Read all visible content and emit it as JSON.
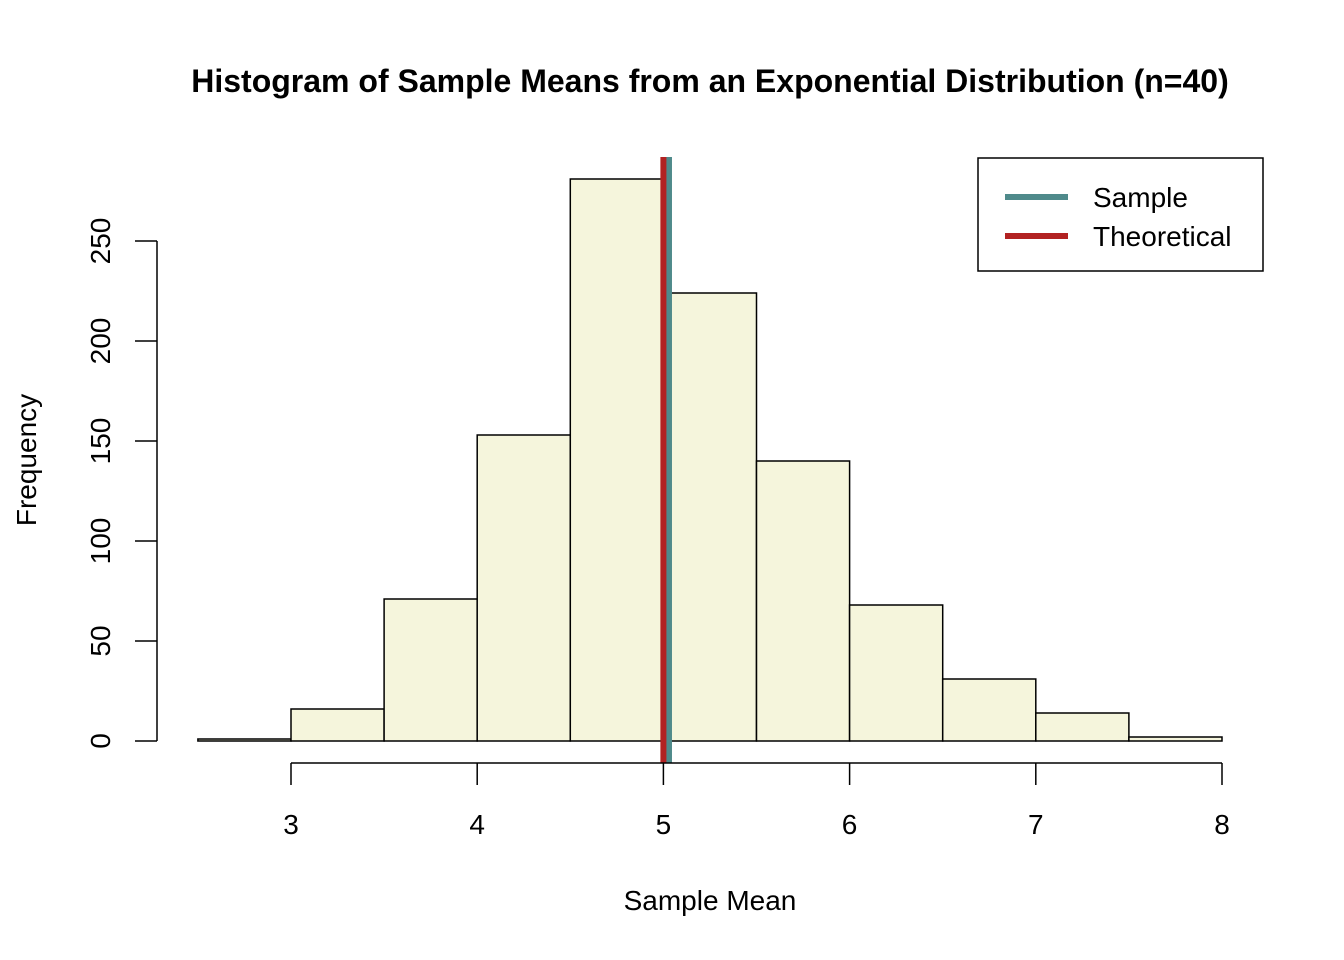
{
  "chart_data": {
    "type": "bar",
    "title": "Histogram of Sample Means from an Exponential Distribution (n=40)",
    "xlabel": "Sample Mean",
    "ylabel": "Frequency",
    "xlim": [
      2.5,
      8
    ],
    "ylim": [
      0,
      280
    ],
    "x_ticks": [
      3,
      4,
      5,
      6,
      7,
      8
    ],
    "y_ticks": [
      0,
      50,
      100,
      150,
      200,
      250
    ],
    "bins": [
      {
        "start": 2.5,
        "end": 3.0,
        "count": 1
      },
      {
        "start": 3.0,
        "end": 3.5,
        "count": 16
      },
      {
        "start": 3.5,
        "end": 4.0,
        "count": 71
      },
      {
        "start": 4.0,
        "end": 4.5,
        "count": 153
      },
      {
        "start": 4.5,
        "end": 5.0,
        "count": 281
      },
      {
        "start": 5.0,
        "end": 5.5,
        "count": 224
      },
      {
        "start": 5.5,
        "end": 6.0,
        "count": 140
      },
      {
        "start": 6.0,
        "end": 6.5,
        "count": 68
      },
      {
        "start": 6.5,
        "end": 7.0,
        "count": 31
      },
      {
        "start": 7.0,
        "end": 7.5,
        "count": 14
      },
      {
        "start": 7.5,
        "end": 8.0,
        "count": 2
      }
    ],
    "bar_color": "#F5F5DC",
    "vertical_lines": [
      {
        "name": "Sample",
        "x": 5.03,
        "color": "#4F8A8B"
      },
      {
        "name": "Theoretical",
        "x": 5.0,
        "color": "#B22222"
      }
    ],
    "legend": {
      "position": "top-right",
      "entries": [
        {
          "label": "Sample",
          "color": "#4F8A8B"
        },
        {
          "label": "Theoretical",
          "color": "#B22222"
        }
      ]
    }
  }
}
